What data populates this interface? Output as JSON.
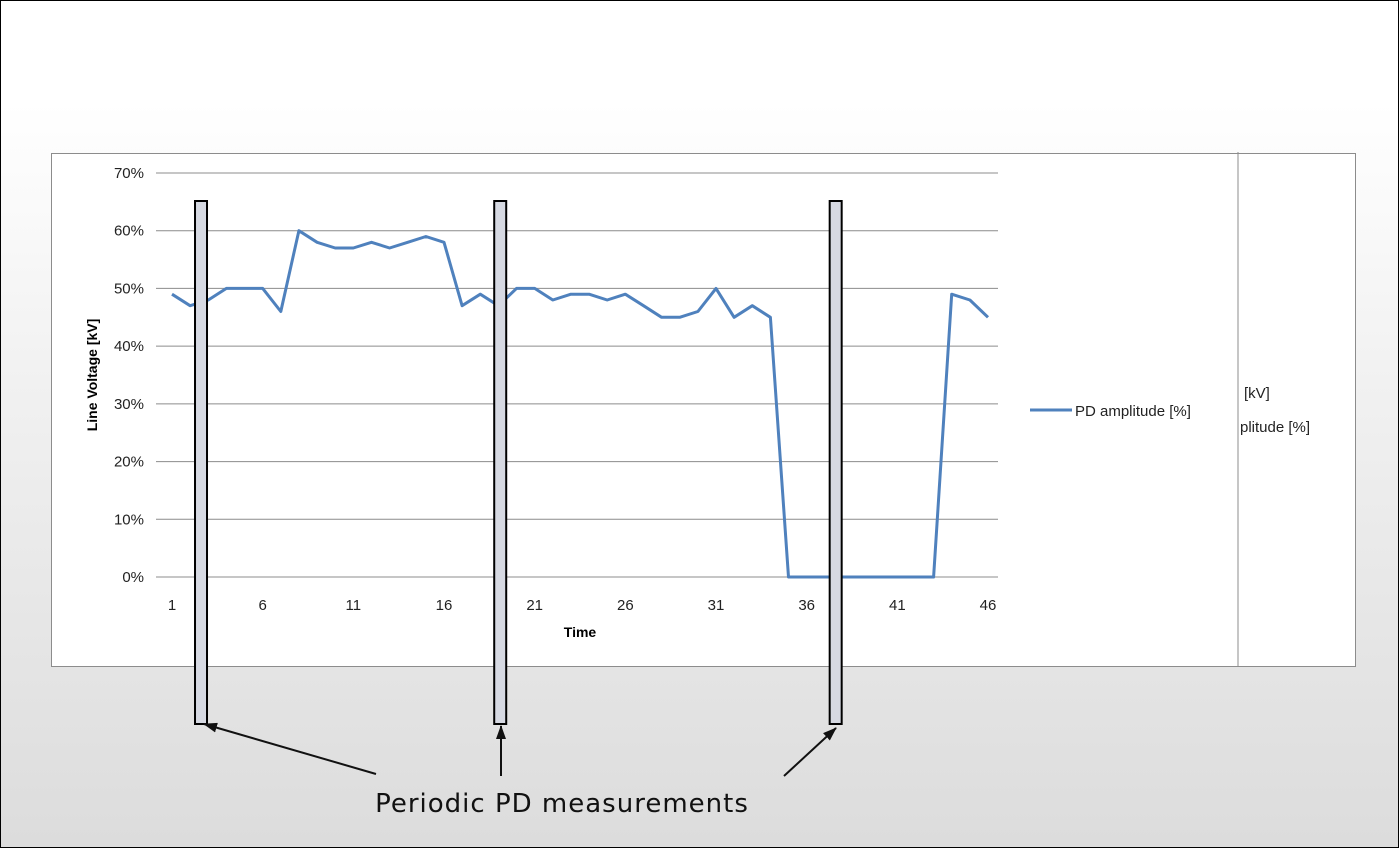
{
  "chart_data": {
    "type": "line",
    "xlabel": "Time",
    "ylabel": "Line Voltage [kV]",
    "x_tick_labels": [
      "1",
      "6",
      "11",
      "16",
      "21",
      "26",
      "31",
      "36",
      "41",
      "46"
    ],
    "y_tick_labels": [
      "0%",
      "10%",
      "20%",
      "30%",
      "40%",
      "50%",
      "60%",
      "70%"
    ],
    "xlim": [
      1,
      46
    ],
    "ylim": [
      0,
      70
    ],
    "grid": true,
    "legend_position": "right",
    "series": [
      {
        "name": "PD amplitude [%]",
        "color": "#4f81bd",
        "x": [
          1,
          2,
          3,
          4,
          5,
          6,
          7,
          8,
          9,
          10,
          11,
          12,
          13,
          14,
          15,
          16,
          17,
          18,
          19,
          20,
          21,
          22,
          23,
          24,
          25,
          26,
          27,
          28,
          29,
          30,
          31,
          32,
          33,
          34,
          35,
          36,
          37,
          38,
          39,
          40,
          41,
          42,
          43,
          44,
          45,
          46
        ],
        "y": [
          49,
          47,
          48,
          50,
          50,
          50,
          46,
          60,
          58,
          57,
          57,
          58,
          57,
          58,
          59,
          58,
          47,
          49,
          47,
          50,
          50,
          48,
          49,
          49,
          48,
          49,
          47,
          45,
          45,
          46,
          50,
          45,
          47,
          45,
          0,
          0,
          0,
          0,
          0,
          0,
          0,
          0,
          0,
          49,
          48,
          45
        ]
      }
    ],
    "truncated_legend_labels": [
      "[kV]",
      "plitude [%]"
    ],
    "highlight_bars_at_x": [
      2.6,
      19.1,
      37.6
    ]
  },
  "annotation": {
    "caption": "Periodic PD measurements"
  },
  "colors": {
    "series_line": "#4f81bd",
    "gridline": "#8c8c8c",
    "highlight_bar_fill": "#d6d9e2"
  }
}
